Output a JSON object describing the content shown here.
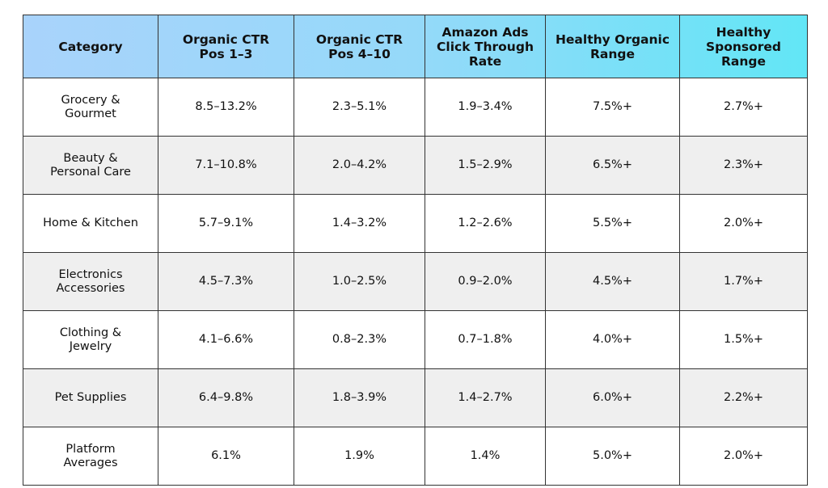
{
  "table": {
    "header": [
      "Category",
      "Organic CTR\nPos 1–3",
      "Organic CTR\nPos 4–10",
      "Amazon Ads\nClick Through\nRate",
      "Healthy Organic\nRange",
      "Healthy\nSponsored\nRange"
    ],
    "rows": [
      [
        "Grocery &\nGourmet",
        "8.5–13.2%",
        "2.3–5.1%",
        "1.9–3.4%",
        "7.5%+",
        "2.7%+"
      ],
      [
        "Beauty &\nPersonal Care",
        "7.1–10.8%",
        "2.0–4.2%",
        "1.5–2.9%",
        "6.5%+",
        "2.3%+"
      ],
      [
        "Home & Kitchen",
        "5.7–9.1%",
        "1.4–3.2%",
        "1.2–2.6%",
        "5.5%+",
        "2.0%+"
      ],
      [
        "Electronics\nAccessories",
        "4.5–7.3%",
        "1.0–2.5%",
        "0.9–2.0%",
        "4.5%+",
        "1.7%+"
      ],
      [
        "Clothing &\nJewelry",
        "4.1–6.6%",
        "0.8–2.3%",
        "0.7–1.8%",
        "4.0%+",
        "1.5%+"
      ],
      [
        "Pet Supplies",
        "6.4–9.8%",
        "1.8–3.9%",
        "1.4–2.7%",
        "6.0%+",
        "2.2%+"
      ],
      [
        "Platform\nAverages",
        "6.1%",
        "1.9%",
        "1.4%",
        "5.0%+",
        "2.0%+"
      ]
    ]
  }
}
